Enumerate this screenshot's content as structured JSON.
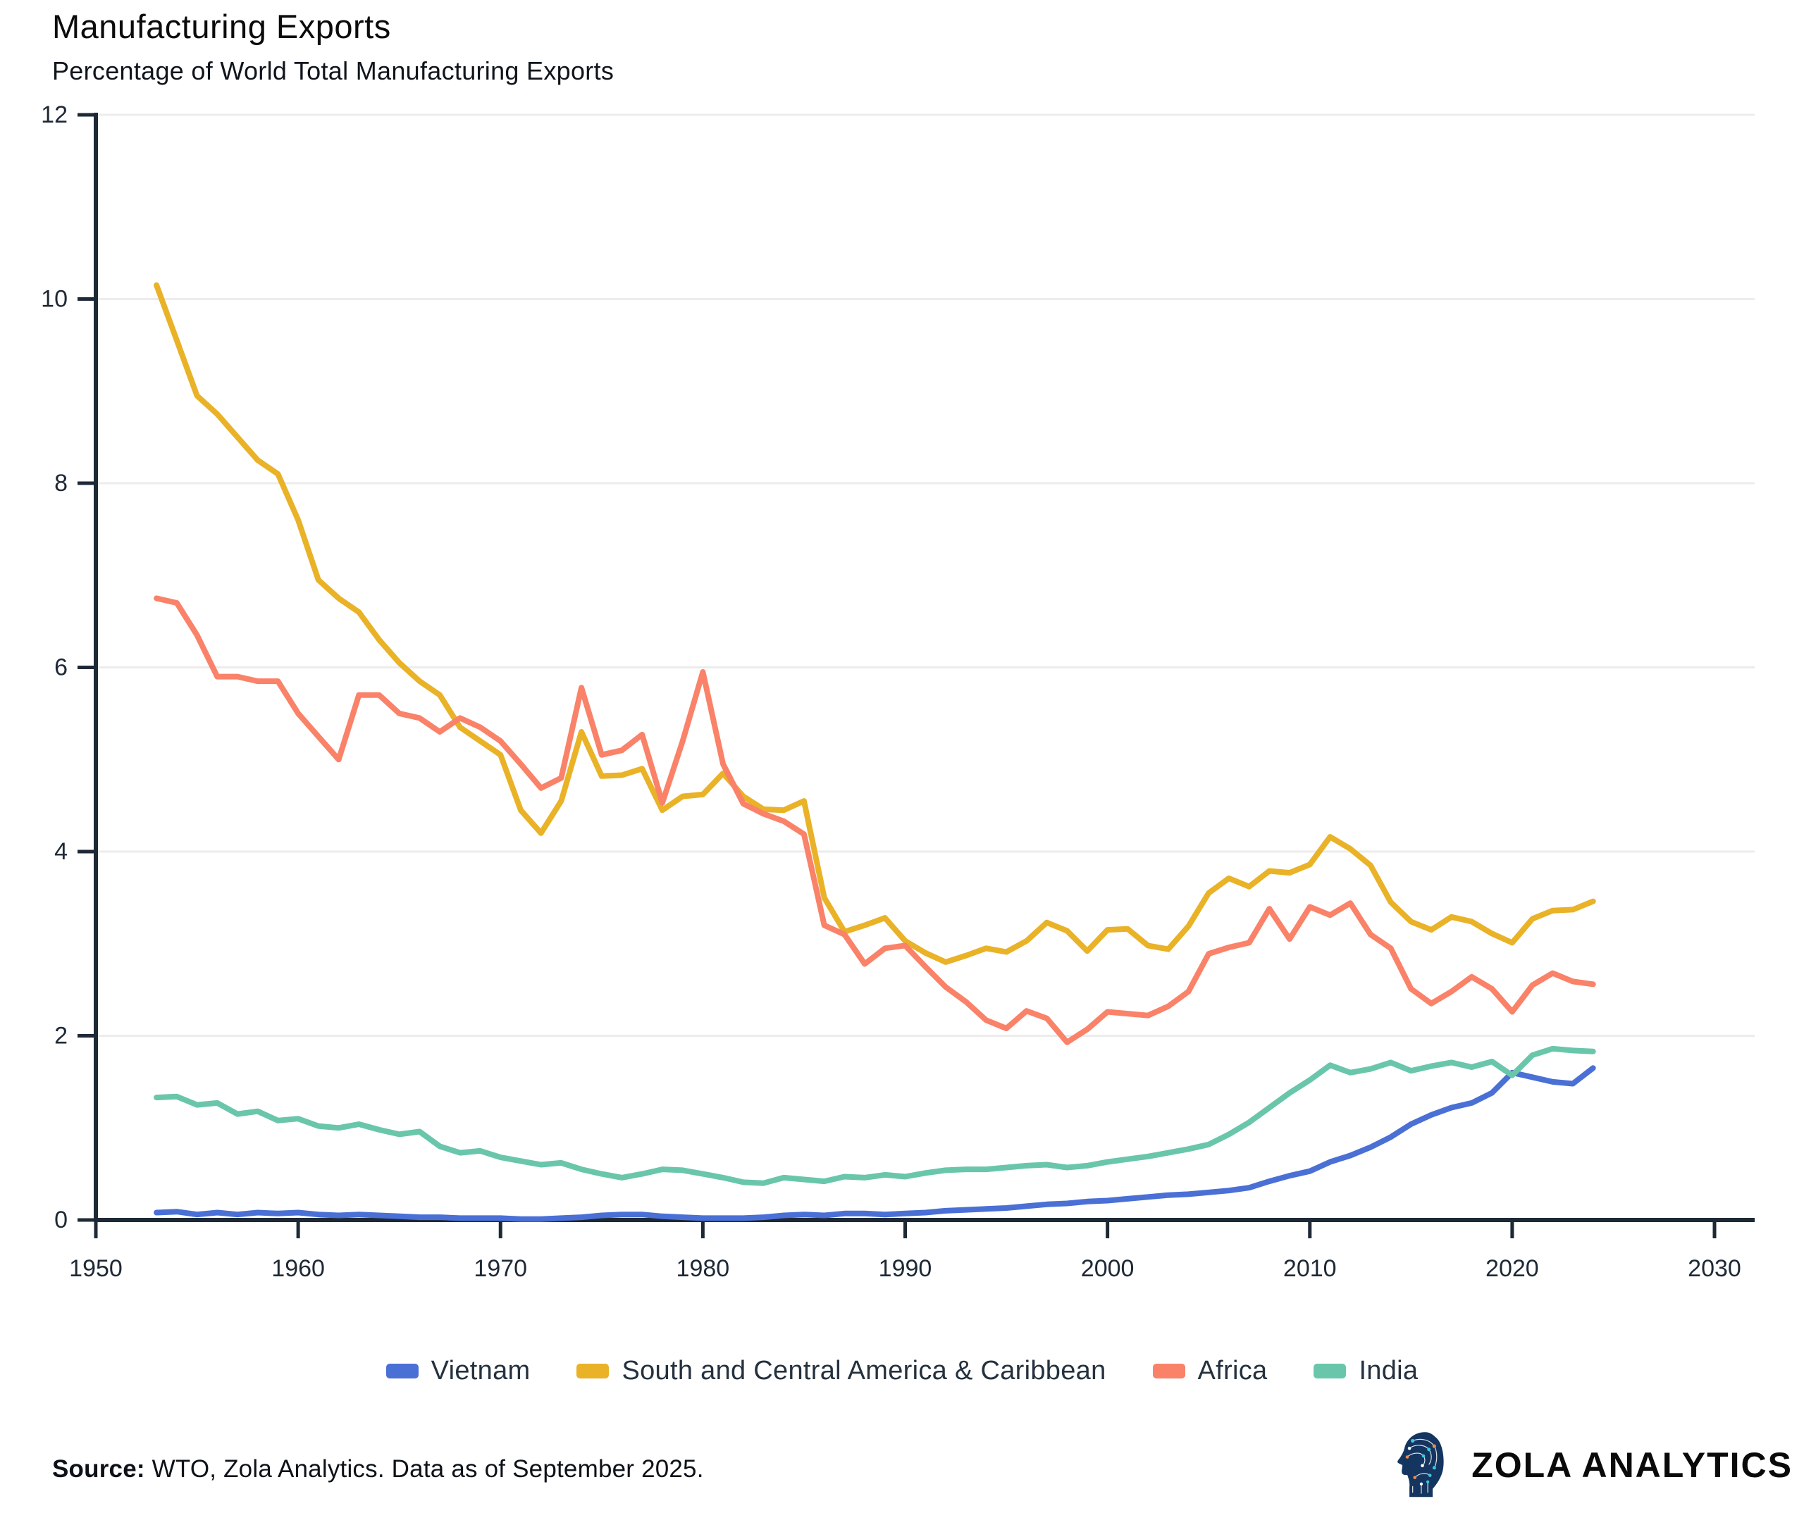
{
  "header": {
    "title": "Manufacturing Exports",
    "subtitle": "Percentage of World Total Manufacturing Exports"
  },
  "chart_data": {
    "type": "line",
    "title": "Manufacturing Exports",
    "subtitle": "Percentage of World Total Manufacturing Exports",
    "xlabel": "",
    "ylabel": "",
    "xlim": [
      1950,
      2030
    ],
    "ylim": [
      0,
      12
    ],
    "x_ticks": [
      1950,
      1960,
      1970,
      1980,
      1990,
      2000,
      2010,
      2020,
      2030
    ],
    "y_ticks": [
      0,
      2,
      4,
      6,
      8,
      10,
      12
    ],
    "grid": "horizontal",
    "grid_color": "#ececec",
    "axis_color": "#1e2936",
    "legend_position": "bottom",
    "years": [
      1953,
      1954,
      1955,
      1956,
      1957,
      1958,
      1959,
      1960,
      1961,
      1962,
      1963,
      1964,
      1965,
      1966,
      1967,
      1968,
      1969,
      1970,
      1971,
      1972,
      1973,
      1974,
      1975,
      1976,
      1977,
      1978,
      1979,
      1980,
      1981,
      1982,
      1983,
      1984,
      1985,
      1986,
      1987,
      1988,
      1989,
      1990,
      1991,
      1992,
      1993,
      1994,
      1995,
      1996,
      1997,
      1998,
      1999,
      2000,
      2001,
      2002,
      2003,
      2004,
      2005,
      2006,
      2007,
      2008,
      2009,
      2010,
      2011,
      2012,
      2013,
      2014,
      2015,
      2016,
      2017,
      2018,
      2019,
      2020,
      2021,
      2022,
      2023,
      2024
    ],
    "series": [
      {
        "name": "Vietnam",
        "color": "#4a70d6",
        "values": [
          0.08,
          0.09,
          0.06,
          0.08,
          0.06,
          0.08,
          0.07,
          0.08,
          0.06,
          0.05,
          0.06,
          0.05,
          0.04,
          0.03,
          0.03,
          0.02,
          0.02,
          0.02,
          0.01,
          0.01,
          0.02,
          0.03,
          0.05,
          0.06,
          0.06,
          0.04,
          0.03,
          0.02,
          0.02,
          0.02,
          0.03,
          0.05,
          0.06,
          0.05,
          0.07,
          0.07,
          0.06,
          0.07,
          0.08,
          0.1,
          0.11,
          0.12,
          0.13,
          0.15,
          0.17,
          0.18,
          0.2,
          0.21,
          0.23,
          0.25,
          0.27,
          0.28,
          0.3,
          0.32,
          0.35,
          0.42,
          0.48,
          0.53,
          0.63,
          0.7,
          0.79,
          0.9,
          1.04,
          1.14,
          1.22,
          1.27,
          1.38,
          1.6,
          1.55,
          1.5,
          1.48,
          1.65
        ]
      },
      {
        "name": "South and Central America & Caribbean",
        "color": "#e9b227",
        "values": [
          10.15,
          9.55,
          8.95,
          8.75,
          8.5,
          8.25,
          8.1,
          7.6,
          6.95,
          6.75,
          6.6,
          6.3,
          6.05,
          5.85,
          5.7,
          5.35,
          5.2,
          5.05,
          4.45,
          4.2,
          4.55,
          5.3,
          4.82,
          4.83,
          4.9,
          4.45,
          4.6,
          4.62,
          4.85,
          4.6,
          4.46,
          4.45,
          4.55,
          3.5,
          3.13,
          3.2,
          3.28,
          3.03,
          2.9,
          2.8,
          2.87,
          2.95,
          2.91,
          3.03,
          3.23,
          3.14,
          2.92,
          3.15,
          3.16,
          2.98,
          2.94,
          3.19,
          3.55,
          3.71,
          3.62,
          3.79,
          3.77,
          3.86,
          4.16,
          4.03,
          3.85,
          3.45,
          3.24,
          3.15,
          3.29,
          3.24,
          3.11,
          3.01,
          3.27,
          3.36,
          3.37,
          3.46
        ]
      },
      {
        "name": "Africa",
        "color": "#f98269",
        "values": [
          6.75,
          6.7,
          6.35,
          5.9,
          5.9,
          5.85,
          5.85,
          5.5,
          5.25,
          5.0,
          5.7,
          5.7,
          5.5,
          5.45,
          5.3,
          5.45,
          5.35,
          5.2,
          4.95,
          4.69,
          4.8,
          5.78,
          5.05,
          5.1,
          5.27,
          4.53,
          5.2,
          5.95,
          4.95,
          4.52,
          4.41,
          4.33,
          4.19,
          3.2,
          3.1,
          2.78,
          2.95,
          2.98,
          2.75,
          2.53,
          2.37,
          2.17,
          2.08,
          2.27,
          2.19,
          1.93,
          2.07,
          2.26,
          2.24,
          2.22,
          2.32,
          2.48,
          2.89,
          2.96,
          3.01,
          3.38,
          3.05,
          3.4,
          3.31,
          3.44,
          3.1,
          2.95,
          2.51,
          2.35,
          2.48,
          2.64,
          2.51,
          2.26,
          2.55,
          2.68,
          2.59,
          2.56
        ]
      },
      {
        "name": "India",
        "color": "#69c6ab",
        "values": [
          1.33,
          1.34,
          1.25,
          1.27,
          1.15,
          1.18,
          1.08,
          1.1,
          1.02,
          1.0,
          1.04,
          0.98,
          0.93,
          0.96,
          0.8,
          0.73,
          0.75,
          0.68,
          0.64,
          0.6,
          0.62,
          0.55,
          0.5,
          0.46,
          0.5,
          0.55,
          0.54,
          0.5,
          0.46,
          0.41,
          0.4,
          0.46,
          0.44,
          0.42,
          0.47,
          0.46,
          0.49,
          0.47,
          0.51,
          0.54,
          0.55,
          0.55,
          0.57,
          0.59,
          0.6,
          0.57,
          0.59,
          0.63,
          0.66,
          0.69,
          0.73,
          0.77,
          0.82,
          0.93,
          1.06,
          1.22,
          1.38,
          1.52,
          1.68,
          1.6,
          1.64,
          1.71,
          1.62,
          1.67,
          1.71,
          1.66,
          1.72,
          1.57,
          1.79,
          1.86,
          1.84,
          1.83
        ]
      }
    ]
  },
  "footer": {
    "source_label": "Source:",
    "source_text": " WTO, Zola Analytics. Data as of September 2025.",
    "brand": "ZOLA ANALYTICS"
  }
}
